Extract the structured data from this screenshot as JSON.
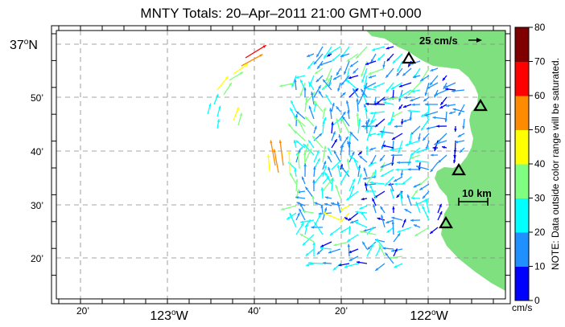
{
  "map": {
    "title": "MNTY Totals: 20–Apr–2011 21:00 GMT+0.000",
    "lat_labels": [
      {
        "deg": "37",
        "sup": "o",
        "suffix": "N"
      },
      {
        "text": "50’"
      },
      {
        "text": "40’"
      },
      {
        "text": "30’"
      },
      {
        "text": "20’"
      }
    ],
    "lon_labels": [
      {
        "text": "20’"
      },
      {
        "deg": "123",
        "sup": "o",
        "suffix": "W"
      },
      {
        "text": "40’"
      },
      {
        "text": "20’"
      },
      {
        "deg": "122",
        "sup": "o",
        "suffix": "W"
      }
    ],
    "scale_vector_label": "25 cm/s",
    "scale_bar_label": "10 km",
    "land_color": "#7fe07f",
    "station_icon": "triangle-icon",
    "stations_count": 4
  },
  "colorbar": {
    "ticks": [
      "80",
      "70",
      "60",
      "50",
      "40",
      "30",
      "20",
      "10",
      "0"
    ],
    "units": "cm/s",
    "note": "NOTE: Data outside color range will be saturated.",
    "colors": [
      "#0000ff",
      "#1e90ff",
      "#00ffff",
      "#7fff7f",
      "#ffff00",
      "#ff8c00",
      "#ff0000",
      "#800000"
    ]
  }
}
